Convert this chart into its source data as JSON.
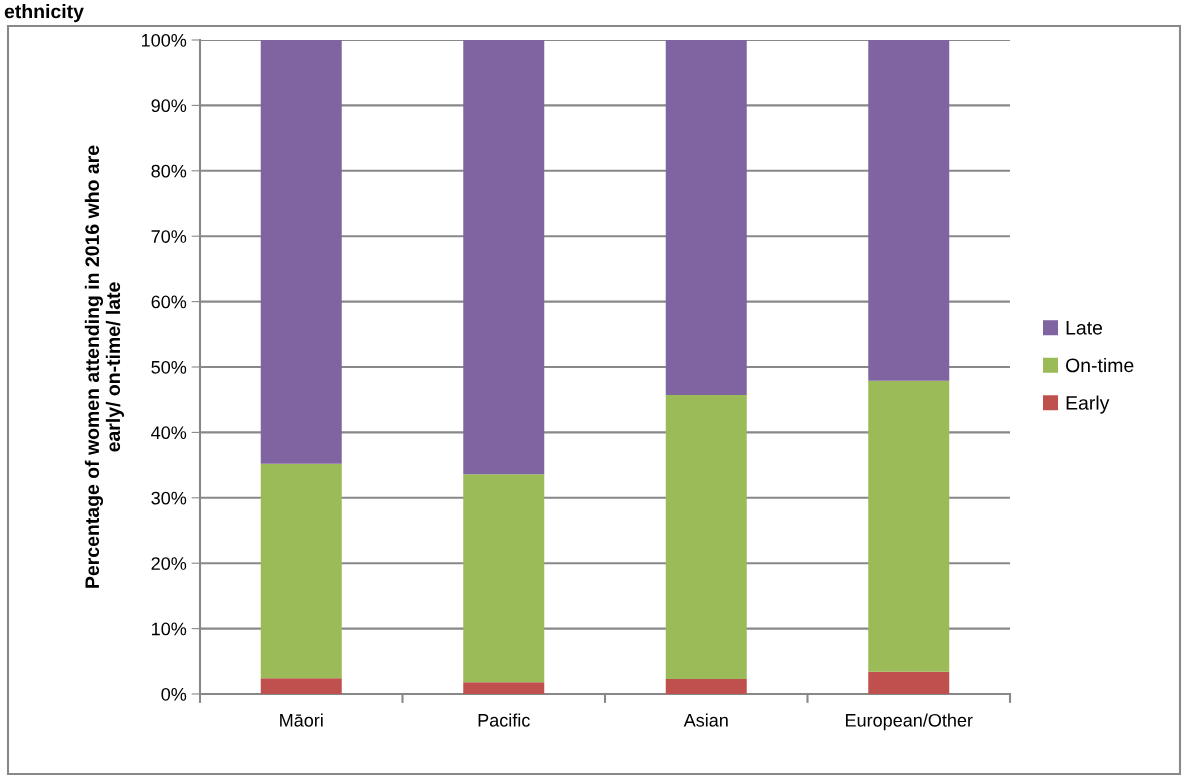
{
  "chart_data": {
    "type": "bar",
    "title": "ethnicity",
    "ylabel": "Percentage of women attending in 2016 who are\nearly/ on-time/ late",
    "categories": [
      "Māori",
      "Pacific",
      "Asian",
      "European/Other"
    ],
    "stacked": true,
    "series": [
      {
        "name": "Early",
        "color": "#c0504d",
        "values": [
          2.4,
          1.8,
          2.3,
          3.4
        ]
      },
      {
        "name": "On-time",
        "color": "#9bbb59",
        "values": [
          32.8,
          31.8,
          43.4,
          44.5
        ]
      },
      {
        "name": "Late",
        "color": "#8064a2",
        "values": [
          64.8,
          66.4,
          54.3,
          52.1
        ]
      }
    ],
    "ylim": [
      0,
      100
    ],
    "yticks": [
      {
        "value": 0,
        "label": "0%"
      },
      {
        "value": 10,
        "label": "10%"
      },
      {
        "value": 20,
        "label": "20%"
      },
      {
        "value": 30,
        "label": "30%"
      },
      {
        "value": 40,
        "label": "40%"
      },
      {
        "value": 50,
        "label": "50%"
      },
      {
        "value": 60,
        "label": "60%"
      },
      {
        "value": 70,
        "label": "70%"
      },
      {
        "value": 80,
        "label": "80%"
      },
      {
        "value": 90,
        "label": "90%"
      },
      {
        "value": 100,
        "label": "100%"
      }
    ],
    "grid": "y",
    "legend": "right"
  }
}
